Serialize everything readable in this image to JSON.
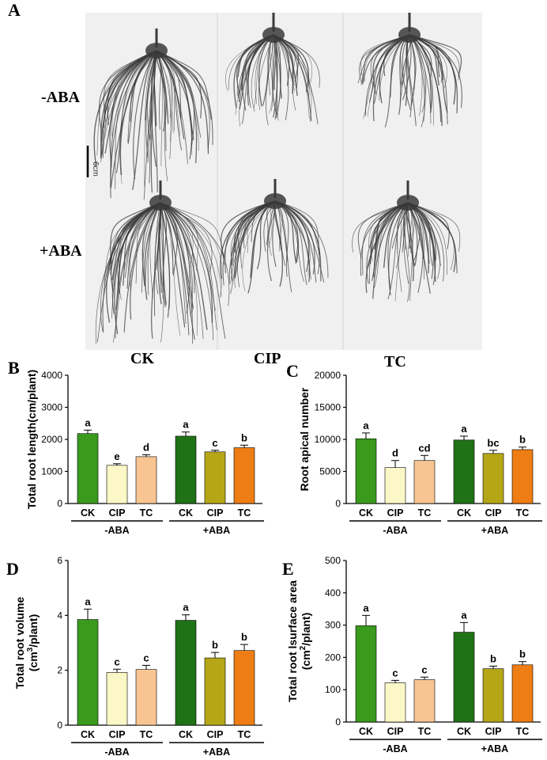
{
  "figure": {
    "panel_a": {
      "letter": "A",
      "row_labels": [
        "-ABA",
        "+ABA"
      ],
      "column_labels": [
        "CK",
        "CIP",
        "TC"
      ],
      "scale_bar_label": "6cm"
    }
  },
  "colors": {
    "CK_minus": "#3a9a1c",
    "CIP_minus": "#fbf7c6",
    "TC_minus": "#f8c592",
    "CK_plus": "#1f7216",
    "CIP_plus": "#b5a618",
    "TC_plus": "#ee7d14",
    "root": "#3a3a3a",
    "panel_bg": "#f0f0f0"
  },
  "chart_data": [
    {
      "letter": "B",
      "type": "bar",
      "categories": [
        "CK",
        "CIP",
        "TC",
        "CK",
        "CIP",
        "TC"
      ],
      "groups": [
        "-ABA",
        "+ABA"
      ],
      "values": [
        2180,
        1190,
        1460,
        2100,
        1610,
        1740
      ],
      "errors": [
        110,
        50,
        60,
        130,
        50,
        80
      ],
      "significance": [
        "a",
        "e",
        "d",
        "a",
        "c",
        "b"
      ],
      "ylabel": "Total root length(cm/plant)",
      "ylim": [
        0,
        4000
      ],
      "yticks": [
        "0",
        "1000",
        "2000",
        "3000",
        "4000"
      ]
    },
    {
      "letter": "C",
      "type": "bar",
      "categories": [
        "CK",
        "CIP",
        "TC",
        "CK",
        "CIP",
        "TC"
      ],
      "groups": [
        "-ABA",
        "+ABA"
      ],
      "values": [
        10100,
        5600,
        6700,
        9900,
        7800,
        8400
      ],
      "errors": [
        900,
        1100,
        800,
        600,
        500,
        400
      ],
      "significance": [
        "a",
        "d",
        "cd",
        "a",
        "bc",
        "b"
      ],
      "ylabel": "Root apical number",
      "ylim": [
        0,
        20000
      ],
      "yticks": [
        "0",
        "5000",
        "10000",
        "15000",
        "20000"
      ]
    },
    {
      "letter": "D",
      "type": "bar",
      "categories": [
        "CK",
        "CIP",
        "TC",
        "CK",
        "CIP",
        "TC"
      ],
      "groups": [
        "-ABA",
        "+ABA"
      ],
      "values": [
        3.85,
        1.92,
        2.03,
        3.82,
        2.45,
        2.72
      ],
      "errors": [
        0.38,
        0.12,
        0.15,
        0.2,
        0.2,
        0.22
      ],
      "significance": [
        "a",
        "c",
        "c",
        "a",
        "b",
        "b"
      ],
      "ylabel_line1": "Total root volume",
      "ylabel_line2_pre": "(cm",
      "ylabel_line2_sup": "3",
      "ylabel_line2_post": "/plant)",
      "ylim": [
        0,
        6
      ],
      "yticks": [
        "0",
        "2",
        "4",
        "6"
      ]
    },
    {
      "letter": "E",
      "type": "bar",
      "categories": [
        "CK",
        "CIP",
        "TC",
        "CK",
        "CIP",
        "TC"
      ],
      "groups": [
        "-ABA",
        "+ABA"
      ],
      "values": [
        298,
        121,
        131,
        278,
        165,
        177
      ],
      "errors": [
        32,
        8,
        8,
        30,
        8,
        10
      ],
      "significance": [
        "a",
        "c",
        "c",
        "a",
        "b",
        "b"
      ],
      "ylabel_line1": "Total root lsurface area",
      "ylabel_line2_pre": "(cm",
      "ylabel_line2_sup": "2",
      "ylabel_line2_post": "/plant)",
      "ylim": [
        0,
        500
      ],
      "yticks": [
        "0",
        "100",
        "200",
        "300",
        "400",
        "500"
      ]
    }
  ]
}
